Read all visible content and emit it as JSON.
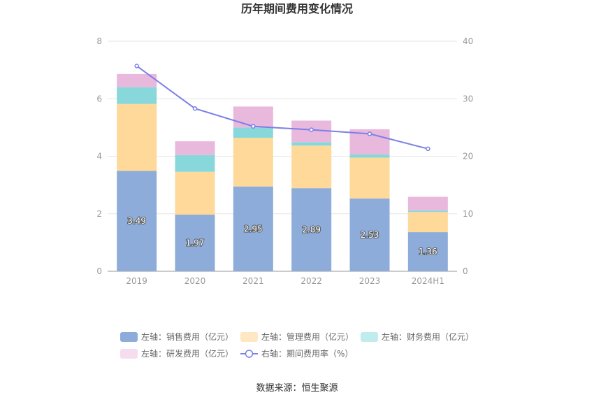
{
  "chart_data": {
    "type": "bar",
    "stacked": true,
    "title": "历年期间费用变化情况",
    "categories": [
      "2019",
      "2020",
      "2021",
      "2022",
      "2023",
      "2024H1"
    ],
    "y_left": {
      "range": [
        0,
        8
      ],
      "ticks": [
        "0",
        "2",
        "4",
        "6",
        "8"
      ]
    },
    "y_right": {
      "range": [
        0,
        40
      ],
      "ticks": [
        "0",
        "10",
        "20",
        "30",
        "40"
      ]
    },
    "series": [
      {
        "name": "左轴：销售费用（亿元）",
        "axis": "left",
        "color": "#8eacd9",
        "values": [
          3.49,
          1.97,
          2.95,
          2.89,
          2.53,
          1.36
        ],
        "labels": [
          "3.49",
          "1.97",
          "2.95",
          "2.89",
          "2.53",
          "1.36"
        ]
      },
      {
        "name": "左轴：管理费用（亿元）",
        "axis": "left",
        "color": "#fed99a",
        "values": [
          2.33,
          1.49,
          1.69,
          1.48,
          1.42,
          0.7
        ]
      },
      {
        "name": "左轴：财务费用（亿元）",
        "axis": "left",
        "color": "#88d8db",
        "values": [
          0.58,
          0.58,
          0.36,
          0.12,
          0.11,
          0.05
        ]
      },
      {
        "name": "左轴：研发费用（亿元）",
        "axis": "left",
        "color": "#e8b9dc",
        "values": [
          0.46,
          0.48,
          0.73,
          0.75,
          0.88,
          0.48
        ]
      },
      {
        "name": "右轴：期间费用率（%）",
        "axis": "right",
        "type": "line",
        "color": "#7b7fe8",
        "values": [
          35.7,
          28.3,
          25.2,
          24.6,
          23.9,
          21.3
        ]
      }
    ],
    "legend_position": "bottom",
    "legend": [
      {
        "label": "左轴：销售费用（亿元）",
        "color": "#8eacd9",
        "kind": "bar"
      },
      {
        "label": "左轴：管理费用（亿元）",
        "color": "#fee8c3",
        "kind": "bar"
      },
      {
        "label": "左轴：财务费用（亿元）",
        "color": "#c0ecee",
        "kind": "bar"
      },
      {
        "label": "左轴：研发费用（亿元）",
        "color": "#f5dcef",
        "kind": "bar"
      },
      {
        "label": "右轴：期间费用率（%）",
        "color": "#7b7fe8",
        "kind": "line"
      }
    ]
  },
  "source": "数据来源：恒生聚源"
}
